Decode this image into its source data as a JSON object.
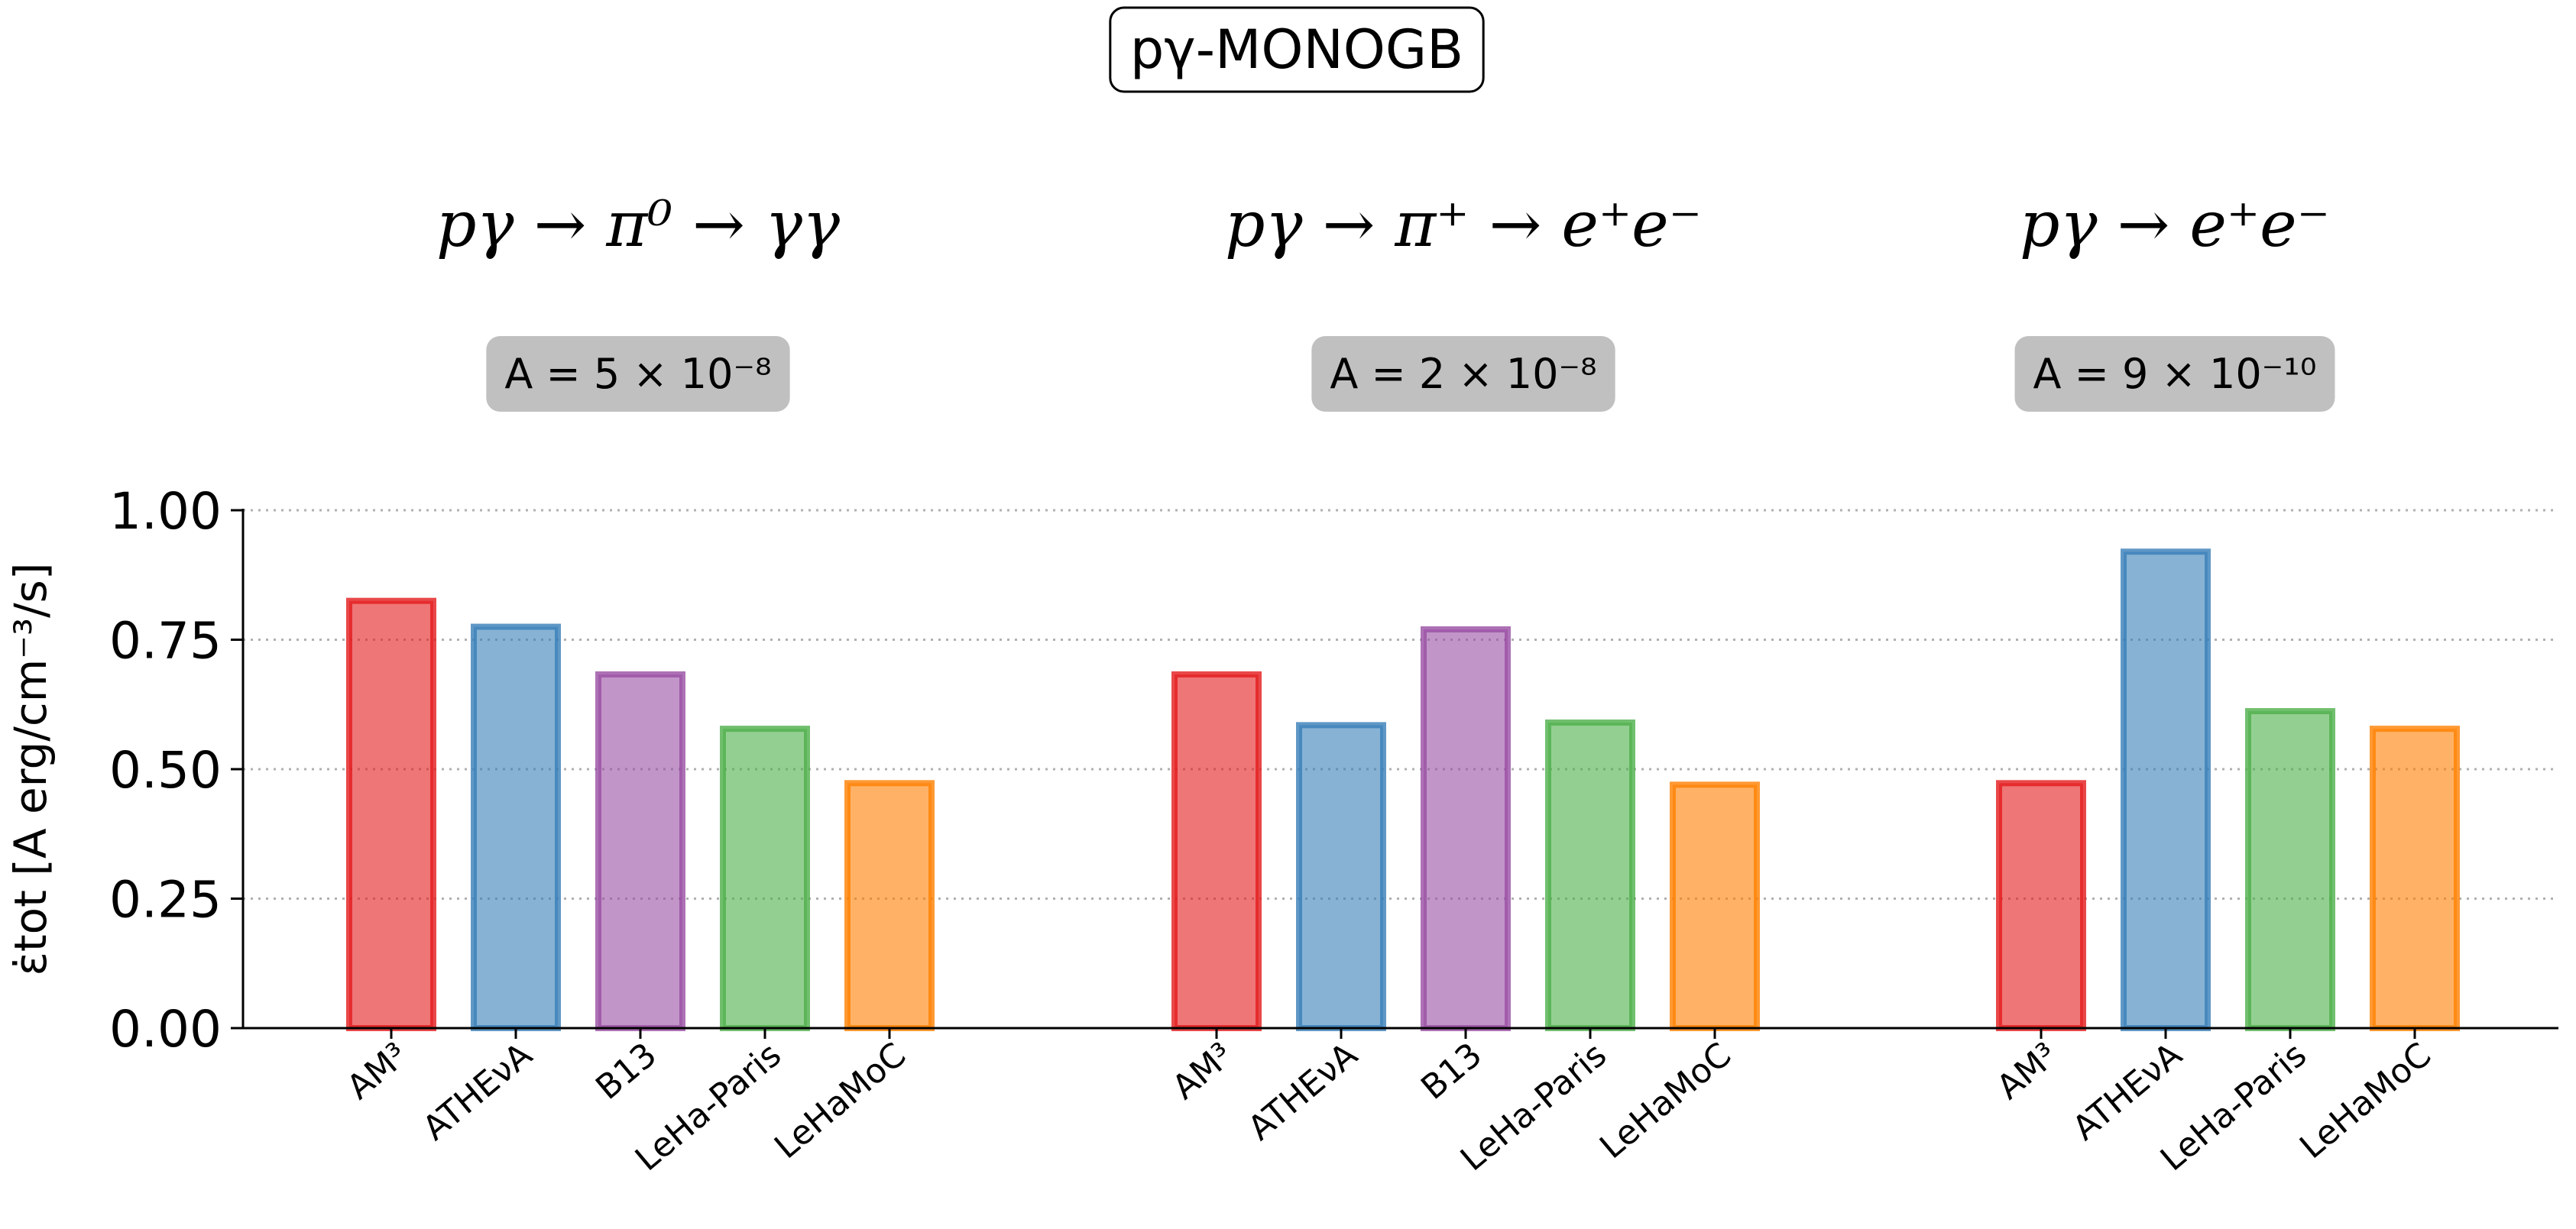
{
  "chart_data": {
    "type": "bar",
    "title": "pγ-MONOGB",
    "ylabel": "ε̇tot [A erg/cm⁻³/s]",
    "ylim": [
      0,
      1.0
    ],
    "yticks": [
      "0.00",
      "0.25",
      "0.50",
      "0.75",
      "1.00"
    ],
    "grid": "horizontal dotted",
    "panels": [
      {
        "process": "pγ → π⁰ → γγ",
        "normalization": "A = 5 × 10⁻⁸",
        "categories": [
          "AM³",
          "ATHEνA",
          "B13",
          "LeHa-Paris",
          "LeHaMoC"
        ],
        "values": [
          0.825,
          0.775,
          0.683,
          0.578,
          0.473
        ]
      },
      {
        "process": "pγ → π⁺ → e⁺e⁻",
        "normalization": "A = 2 × 10⁻⁸",
        "categories": [
          "AM³",
          "ATHEνA",
          "B13",
          "LeHa-Paris",
          "LeHaMoC"
        ],
        "values": [
          0.683,
          0.585,
          0.77,
          0.59,
          0.47
        ]
      },
      {
        "process": "pγ → e⁺e⁻",
        "normalization": "A = 9 × 10⁻¹⁰",
        "categories": [
          "AM³",
          "ATHEνA",
          "LeHa-Paris",
          "LeHaMoC"
        ],
        "values": [
          0.473,
          0.92,
          0.612,
          0.578
        ]
      }
    ],
    "colors": {
      "AM³": "#e41a1c",
      "ATHEνA": "#377eb8",
      "B13": "#984ea3",
      "LeHa-Paris": "#4daf4a",
      "LeHaMoC": "#ff7f00"
    }
  }
}
